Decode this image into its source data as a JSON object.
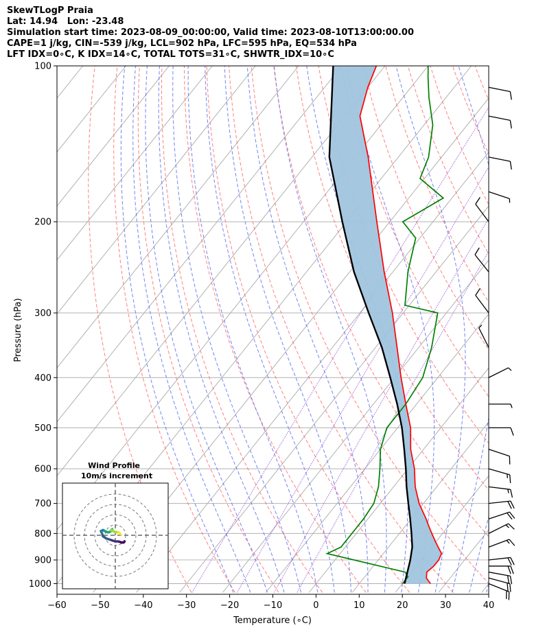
{
  "header": {
    "line1": "SkewTLogP Praia",
    "line2": "Lat: 14.94   Lon: -23.48",
    "line3": "Simulation start time: 2023-08-09_00:00:00, Valid time: 2023-08-10T13:00:00.00",
    "line4": "CAPE=1 j/kg, CIN=-539 j/kg, LCL=902 hPa, LFC=595 hPa, EQ=534 hPa",
    "line5": "LFT IDX=0∘C, K IDX=14∘C, TOTAL TOTS=31∘C, SHWTR_IDX=10∘C"
  },
  "colors": {
    "temperature": "#ff0000",
    "dewpoint": "#008000",
    "parcel": "#000000",
    "cape_fill": "#a0c4de",
    "dry_adiabat": "#ff6060",
    "moist_adiabat": "#5a6ef0",
    "mixing_ratio": "#8a3fd0",
    "isotherm": "#aaaaaa",
    "isobar_grid": "#b0b0b0"
  },
  "chart_data": {
    "type": "line",
    "title": "",
    "xlabel": "Temperature (∘C)",
    "ylabel": "Pressure (hPa)",
    "xlim": [
      -60,
      40
    ],
    "ylim": [
      1040,
      100
    ],
    "y_scale": "log",
    "skew": true,
    "grid": true,
    "x_ticks": [
      "−60",
      "−50",
      "−40",
      "−30",
      "−20",
      "−10",
      "0",
      "10",
      "20",
      "30",
      "40"
    ],
    "y_ticks": [
      "100",
      "200",
      "300",
      "400",
      "500",
      "600",
      "700",
      "800",
      "900",
      "1000"
    ],
    "temperature": {
      "p": [
        1000,
        975,
        950,
        925,
        900,
        875,
        850,
        825,
        800,
        775,
        750,
        700,
        650,
        600,
        550,
        500,
        450,
        400,
        350,
        300,
        250,
        200,
        175,
        150,
        125,
        110,
        100
      ],
      "t": [
        26.5,
        24.5,
        23.5,
        24.0,
        24.0,
        23.5,
        21.5,
        19.5,
        17.5,
        15.5,
        13.5,
        9.0,
        5.0,
        1.5,
        -3.0,
        -7.0,
        -12.5,
        -18.5,
        -25.0,
        -32.5,
        -42.0,
        -53.0,
        -59.5,
        -67.0,
        -76.5,
        -80.0,
        -82.0
      ]
    },
    "dewpoint": {
      "p": [
        1000,
        970,
        950,
        875,
        850,
        800,
        750,
        700,
        650,
        600,
        550,
        500,
        450,
        400,
        350,
        300,
        290,
        250,
        215,
        200,
        180,
        165,
        150,
        130,
        115,
        105,
        100
      ],
      "td": [
        20.0,
        20.0,
        18.5,
        -3.0,
        -1.0,
        -1.0,
        -1.0,
        -1.5,
        -3.5,
        -6.5,
        -10.0,
        -12.5,
        -12.5,
        -13.5,
        -17.0,
        -22.0,
        -31.0,
        -36.5,
        -41.0,
        -47.0,
        -42.0,
        -51.0,
        -53.0,
        -58.0,
        -64.0,
        -68.0,
        -70.0
      ]
    },
    "parcel": {
      "p": [
        1000,
        950,
        902,
        850,
        800,
        750,
        700,
        650,
        600,
        550,
        500,
        450,
        400,
        350,
        300,
        250,
        200,
        150,
        100
      ],
      "t": [
        20.5,
        19.0,
        17.5,
        15.5,
        12.8,
        9.8,
        6.5,
        3.0,
        -0.5,
        -4.5,
        -9.0,
        -14.5,
        -21.0,
        -28.5,
        -38.0,
        -49.0,
        -61.0,
        -76.0,
        -92.0
      ]
    },
    "wind_barbs": {
      "p": [
        1000,
        975,
        950,
        925,
        900,
        850,
        800,
        750,
        700,
        650,
        600,
        550,
        500,
        450,
        400,
        350,
        300,
        250,
        200,
        175,
        150,
        125,
        110
      ],
      "u": [
        -10,
        -11,
        -11,
        -10,
        -9,
        -8,
        -8,
        -9,
        -9,
        -8,
        -7,
        -6,
        -4,
        -3,
        -2,
        1,
        3,
        4,
        3,
        -3,
        -5,
        -5,
        -5
      ],
      "v": [
        4,
        3,
        2,
        0,
        -1,
        -3,
        -4,
        -3,
        -1,
        1,
        2,
        2,
        0,
        0,
        -1,
        -2,
        -4,
        -5,
        -4,
        1,
        1,
        1,
        1
      ]
    },
    "hodograph": {
      "title": "Wind Profile",
      "subtitle": "10m/s increment",
      "rings_ms": [
        10,
        20,
        30,
        40
      ],
      "u": [
        9,
        8,
        6,
        3,
        0,
        -3,
        -6,
        -9,
        -12,
        -13,
        -14,
        -12,
        -10,
        -8,
        -6,
        -4,
        -3,
        -3,
        -4,
        -2,
        0,
        3,
        4,
        5
      ],
      "v": [
        -6,
        -7,
        -7,
        -6,
        -6,
        -5,
        -4,
        -3,
        -1,
        2,
        4,
        5,
        4,
        3,
        3,
        4,
        5,
        6,
        5,
        4,
        3,
        3,
        2,
        1
      ]
    }
  }
}
